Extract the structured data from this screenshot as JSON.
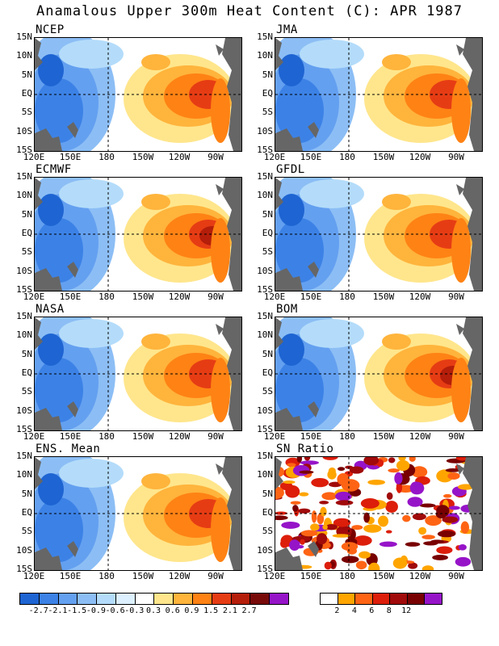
{
  "title": "Anamalous Upper 300m Heat Content (C): APR 1987",
  "panels": [
    {
      "name": "NCEP"
    },
    {
      "name": "JMA"
    },
    {
      "name": "ECMWF"
    },
    {
      "name": "GFDL"
    },
    {
      "name": "NASA"
    },
    {
      "name": "BOM"
    },
    {
      "name": "ENS. Mean"
    },
    {
      "name": "SN Ratio"
    }
  ],
  "lat_labels": [
    "15N",
    "10N",
    "5N",
    "EQ",
    "5S",
    "10S",
    "15S"
  ],
  "lon_labels": [
    "120E",
    "150E",
    "180",
    "150W",
    "120W",
    "90W"
  ],
  "colorbar_anomaly": {
    "colors": [
      "#1e64d2",
      "#3c82e6",
      "#64a0f0",
      "#8cbef5",
      "#b4dcfa",
      "#dcf0ff",
      "#ffffff",
      "#ffe68c",
      "#ffb43c",
      "#ff8214",
      "#e63c14",
      "#b41e0a",
      "#780a0a",
      "#9614c8"
    ],
    "labels": [
      "-2.7",
      "-2.1",
      "-1.5",
      "-0.9",
      "-0.6",
      "-0.3",
      "0.3",
      "0.6",
      "0.9",
      "1.5",
      "2.1",
      "2.7"
    ]
  },
  "colorbar_sn": {
    "colors": [
      "#ffffff",
      "#ffa500",
      "#ff6414",
      "#dc1e0a",
      "#a00a0a",
      "#780000",
      "#9614c8"
    ],
    "labels": [
      "2",
      "4",
      "6",
      "8",
      "12"
    ]
  }
}
